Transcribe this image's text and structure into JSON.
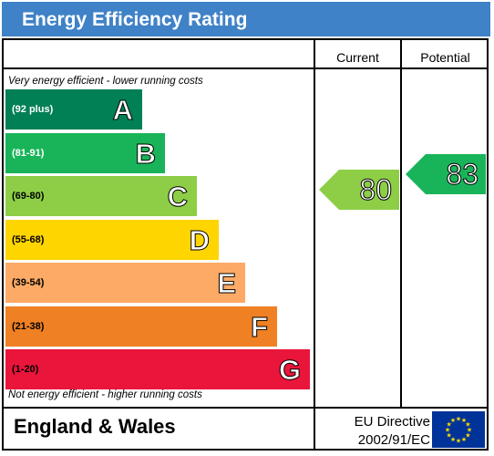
{
  "title": "Energy Efficiency Rating",
  "columns": {
    "current": "Current",
    "potential": "Potential"
  },
  "notes": {
    "top": "Very energy efficient - lower running costs",
    "bottom": "Not energy efficient - higher running costs"
  },
  "bands": [
    {
      "letter": "A",
      "range": "(92 plus)",
      "color": "#008054"
    },
    {
      "letter": "B",
      "range": "(81-91)",
      "color": "#19b459"
    },
    {
      "letter": "C",
      "range": "(69-80)",
      "color": "#8dce46"
    },
    {
      "letter": "D",
      "range": "(55-68)",
      "color": "#ffd500"
    },
    {
      "letter": "E",
      "range": "(39-54)",
      "color": "#fcaa65"
    },
    {
      "letter": "F",
      "range": "(21-38)",
      "color": "#ef8023"
    },
    {
      "letter": "G",
      "range": "(1-20)",
      "color": "#e9153b"
    }
  ],
  "ratings": {
    "current": {
      "value": "80",
      "color": "#8dce46"
    },
    "potential": {
      "value": "83",
      "color": "#19b459"
    }
  },
  "footer": {
    "region": "England & Wales",
    "directive_line1": "EU Directive",
    "directive_line2": "2002/91/EC"
  },
  "colors": {
    "title_bar": "#3f82c7",
    "eu_flag": "#003399",
    "eu_stars": "#ffdd00"
  }
}
